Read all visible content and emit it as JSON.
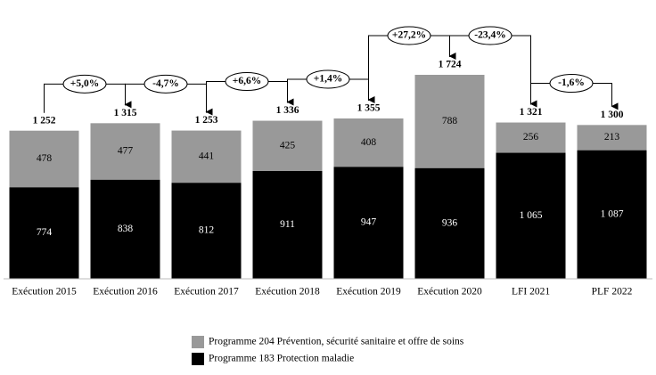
{
  "chart_data": {
    "type": "stacked-bar",
    "categories": [
      "Exécution 2015",
      "Exécution 2016",
      "Exécution 2017",
      "Exécution 2018",
      "Exécution 2019",
      "Exécution 2020",
      "LFI 2021",
      "PLF 2022"
    ],
    "series": [
      {
        "name": "Programme 183 Protection maladie",
        "color": "#000000",
        "label_color": "#ffffff",
        "values": [
          774,
          838,
          812,
          911,
          947,
          936,
          1065,
          1087
        ],
        "value_labels": [
          "774",
          "838",
          "812",
          "911",
          "947",
          "936",
          "1 065",
          "1 087"
        ]
      },
      {
        "name": "Programme 204 Prévention, sécurité sanitaire et offre de soins",
        "color": "#999999",
        "label_color": "#000000",
        "values": [
          478,
          477,
          441,
          425,
          408,
          788,
          256,
          213
        ]
      }
    ],
    "totals": [
      1252,
      1315,
      1253,
      1336,
      1355,
      1724,
      1321,
      1300
    ],
    "total_labels": [
      "1 252",
      "1 315",
      "1 253",
      "1 336",
      "1 355",
      "1 724",
      "1 321",
      "1 300"
    ],
    "changes": [
      {
        "value": 5.0,
        "label": "+5,0%"
      },
      {
        "value": -4.7,
        "label": "-4,7%"
      },
      {
        "value": 6.6,
        "label": "+6,6%"
      },
      {
        "value": 1.4,
        "label": "+1,4%"
      },
      {
        "value": 27.2,
        "label": "+27,2%"
      },
      {
        "value": -23.4,
        "label": "-23,4%"
      },
      {
        "value": -1.6,
        "label": "-1,6%"
      }
    ],
    "legend": "bottom-left"
  }
}
